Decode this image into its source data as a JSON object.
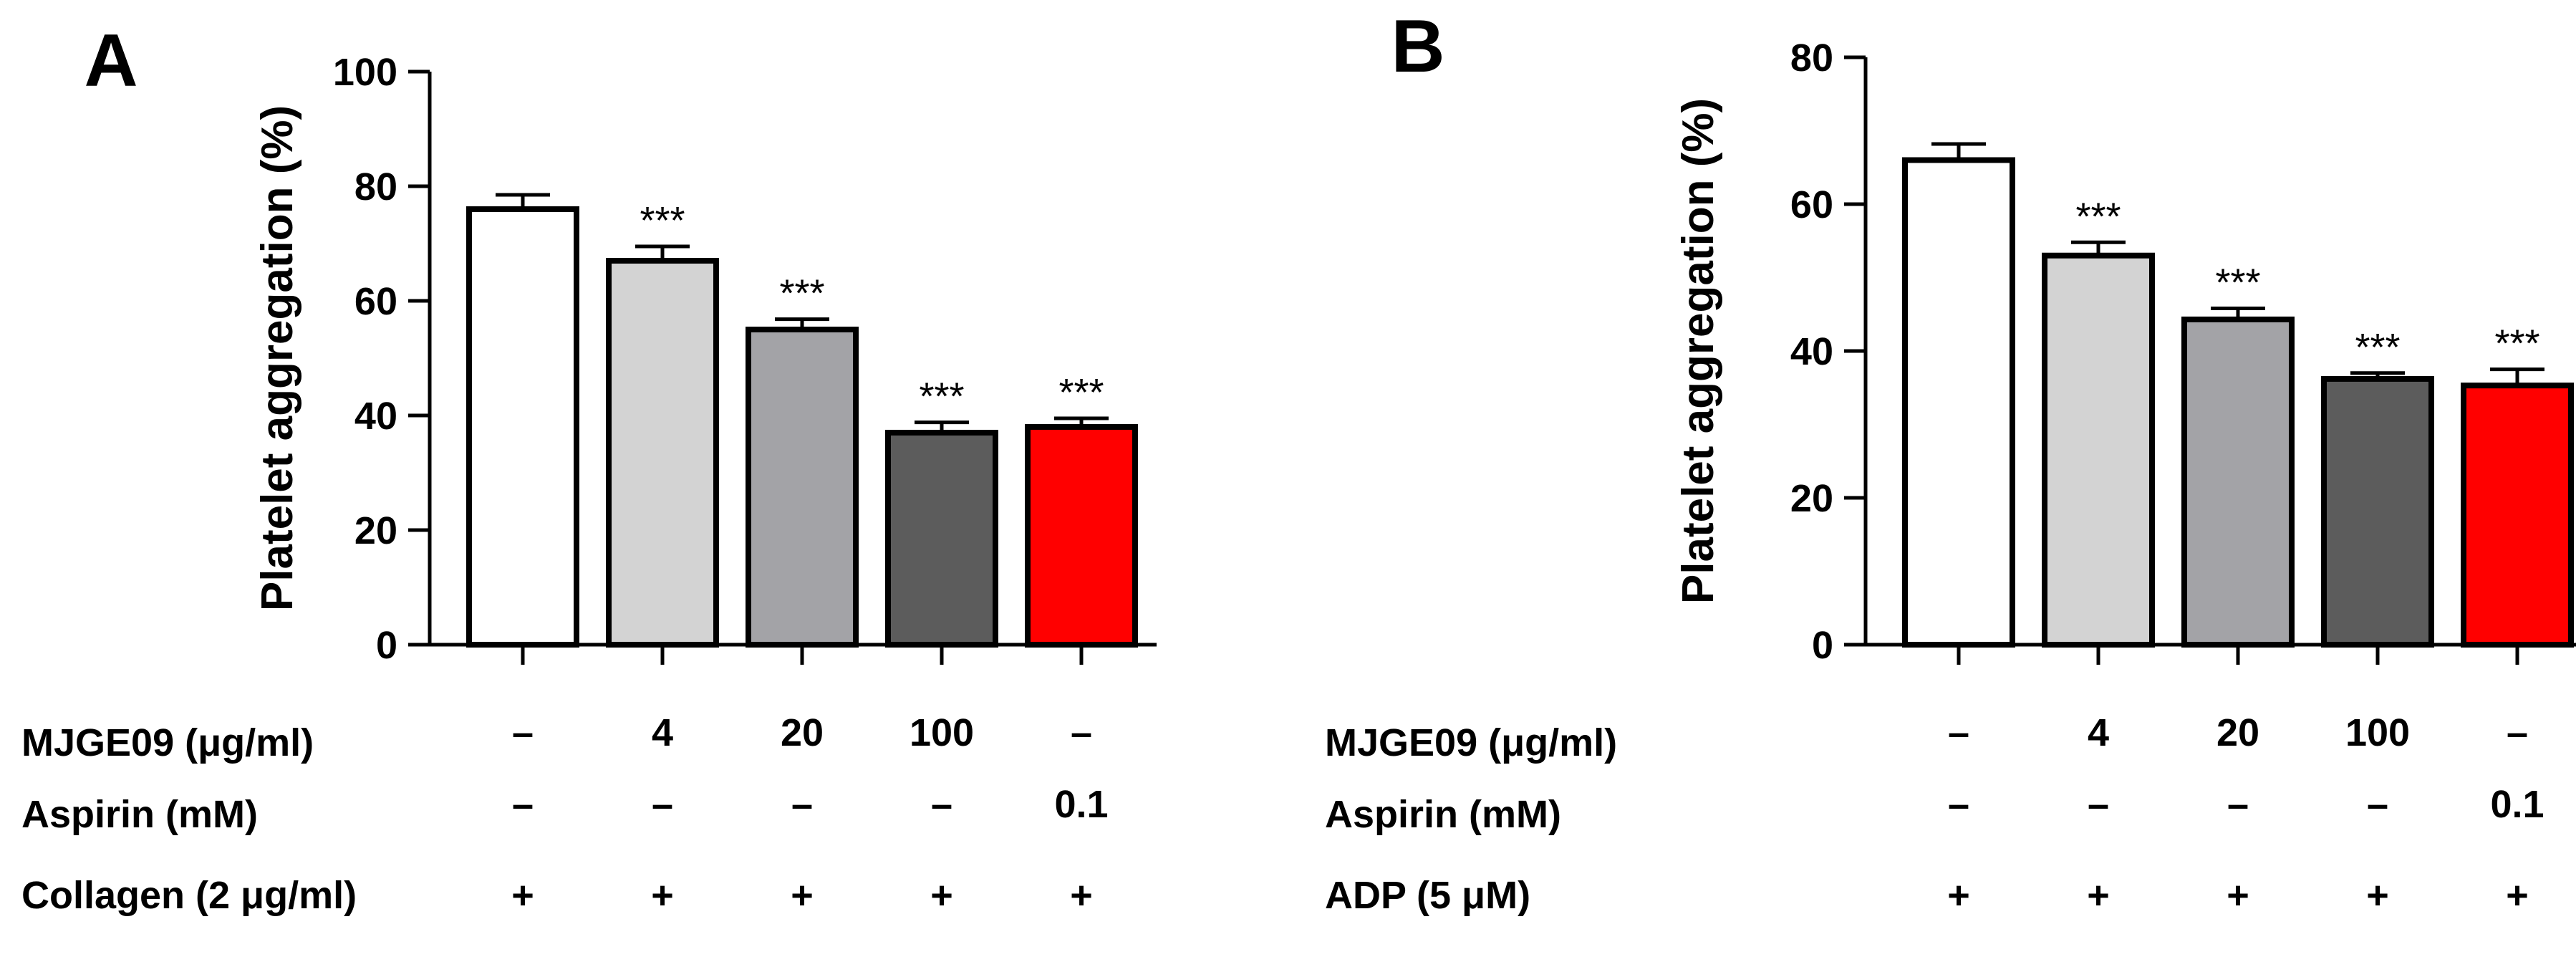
{
  "chart_data": [
    {
      "type": "bar",
      "panel": "A",
      "title": "",
      "xlabel": "",
      "ylabel": "Platelet aggregation (%)",
      "ylim": [
        0,
        100
      ],
      "yticks": [
        "0",
        "20",
        "40",
        "60",
        "80",
        "100"
      ],
      "values": [
        76,
        67,
        55,
        37,
        38
      ],
      "errors": [
        2.5,
        2.5,
        1.8,
        1.8,
        1.5
      ],
      "significance": [
        "",
        "***",
        "***",
        "***",
        "***"
      ],
      "bar_colors": [
        "#ffffff",
        "#d3d3d3",
        "#a3a3a7",
        "#5c5c5c",
        "#ff0000"
      ],
      "conditions": [
        {
          "label": "MJGE09 (μg/ml)",
          "values": [
            "–",
            "4",
            "20",
            "100",
            "–"
          ]
        },
        {
          "label": "Aspirin (mM)",
          "values": [
            "–",
            "–",
            "–",
            "–",
            "0.1"
          ]
        },
        {
          "label": "Collagen (2 μg/ml)",
          "values": [
            "+",
            "+",
            "+",
            "+",
            "+"
          ]
        }
      ]
    },
    {
      "type": "bar",
      "panel": "B",
      "title": "",
      "xlabel": "",
      "ylabel": "Platelet aggregation (%)",
      "ylim": [
        0,
        80
      ],
      "yticks": [
        "0",
        "20",
        "40",
        "60",
        "80"
      ],
      "values": [
        66,
        53,
        44.3,
        36.2,
        35.3
      ],
      "errors": [
        2.2,
        1.8,
        1.5,
        0.8,
        2.2
      ],
      "significance": [
        "",
        "***",
        "***",
        "***",
        "***"
      ],
      "bar_colors": [
        "#ffffff",
        "#d3d3d3",
        "#a3a3a7",
        "#5c5c5c",
        "#ff0000"
      ],
      "conditions": [
        {
          "label": "MJGE09 (μg/ml)",
          "values": [
            "–",
            "4",
            "20",
            "100",
            "–"
          ]
        },
        {
          "label": "Aspirin (mM)",
          "values": [
            "–",
            "–",
            "–",
            "–",
            "0.1"
          ]
        },
        {
          "label": "ADP (5 μM)",
          "values": [
            "+",
            "+",
            "+",
            "+",
            "+"
          ]
        }
      ]
    }
  ]
}
